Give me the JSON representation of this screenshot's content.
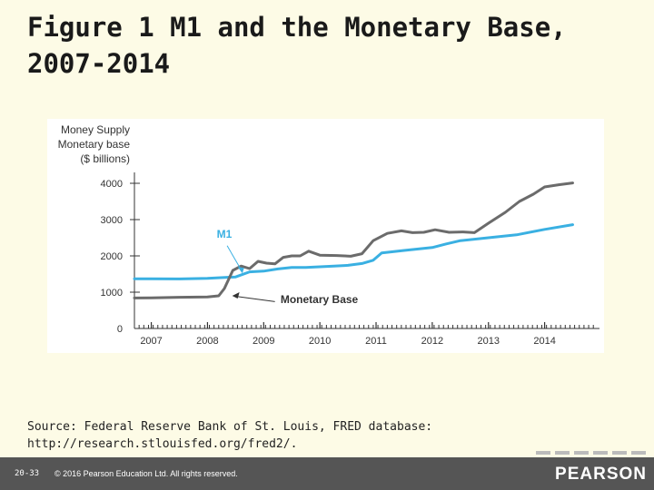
{
  "slide": {
    "title_line1": "Figure 1 M1 and the Monetary Base,",
    "title_line2": "2007-2014",
    "source_line1": "Source: Federal Reserve Bank of St. Louis, FRED database:",
    "source_line2": "http://research.stlouisfed.org/fred2/.",
    "page_number": "20-33",
    "copyright": "© 2016 Pearson Education Ltd. All rights reserved.",
    "logo_text": "PEARSON"
  },
  "chart_data": {
    "type": "line",
    "ylabel_lines": [
      "Money Supply",
      "Monetary base",
      "($ billions)"
    ],
    "ylim": [
      0,
      4000
    ],
    "yticks": [
      0,
      1000,
      2000,
      3000,
      4000
    ],
    "xlim": [
      2006.7,
      2014.75
    ],
    "xticks": [
      "2007",
      "2008",
      "2009",
      "2010",
      "2011",
      "2012",
      "2013",
      "2014"
    ],
    "grid": false,
    "annotations": [
      {
        "text": "M1",
        "series": "M1"
      },
      {
        "text": "Monetary Base",
        "series": "Monetary Base"
      }
    ],
    "colors": {
      "M1": "#3ab0e2",
      "Monetary Base": "#6b6b6b",
      "axis": "#333333",
      "label": "#3ab0e2"
    },
    "series": [
      {
        "name": "M1",
        "points": [
          [
            2006.7,
            1370
          ],
          [
            2007.0,
            1370
          ],
          [
            2007.5,
            1365
          ],
          [
            2008.0,
            1380
          ],
          [
            2008.5,
            1420
          ],
          [
            2008.75,
            1560
          ],
          [
            2009.0,
            1580
          ],
          [
            2009.25,
            1640
          ],
          [
            2009.5,
            1680
          ],
          [
            2009.75,
            1680
          ],
          [
            2010.0,
            1700
          ],
          [
            2010.25,
            1720
          ],
          [
            2010.5,
            1740
          ],
          [
            2010.75,
            1790
          ],
          [
            2010.95,
            1880
          ],
          [
            2011.1,
            2080
          ],
          [
            2011.5,
            2150
          ],
          [
            2012.0,
            2230
          ],
          [
            2012.25,
            2330
          ],
          [
            2012.5,
            2420
          ],
          [
            2013.0,
            2500
          ],
          [
            2013.5,
            2580
          ],
          [
            2014.0,
            2730
          ],
          [
            2014.5,
            2860
          ]
        ]
      },
      {
        "name": "Monetary Base",
        "points": [
          [
            2006.7,
            840
          ],
          [
            2007.0,
            845
          ],
          [
            2007.5,
            860
          ],
          [
            2008.0,
            870
          ],
          [
            2008.2,
            900
          ],
          [
            2008.3,
            1100
          ],
          [
            2008.45,
            1600
          ],
          [
            2008.6,
            1720
          ],
          [
            2008.75,
            1650
          ],
          [
            2008.9,
            1850
          ],
          [
            2009.05,
            1800
          ],
          [
            2009.2,
            1780
          ],
          [
            2009.35,
            1960
          ],
          [
            2009.5,
            2000
          ],
          [
            2009.65,
            2000
          ],
          [
            2009.8,
            2130
          ],
          [
            2010.0,
            2020
          ],
          [
            2010.3,
            2010
          ],
          [
            2010.55,
            1990
          ],
          [
            2010.75,
            2060
          ],
          [
            2010.95,
            2420
          ],
          [
            2011.2,
            2620
          ],
          [
            2011.45,
            2690
          ],
          [
            2011.65,
            2640
          ],
          [
            2011.85,
            2650
          ],
          [
            2012.05,
            2720
          ],
          [
            2012.3,
            2650
          ],
          [
            2012.55,
            2660
          ],
          [
            2012.75,
            2640
          ],
          [
            2013.0,
            2900
          ],
          [
            2013.3,
            3200
          ],
          [
            2013.55,
            3500
          ],
          [
            2013.8,
            3700
          ],
          [
            2014.0,
            3900
          ],
          [
            2014.25,
            3960
          ],
          [
            2014.5,
            4010
          ]
        ]
      }
    ]
  }
}
